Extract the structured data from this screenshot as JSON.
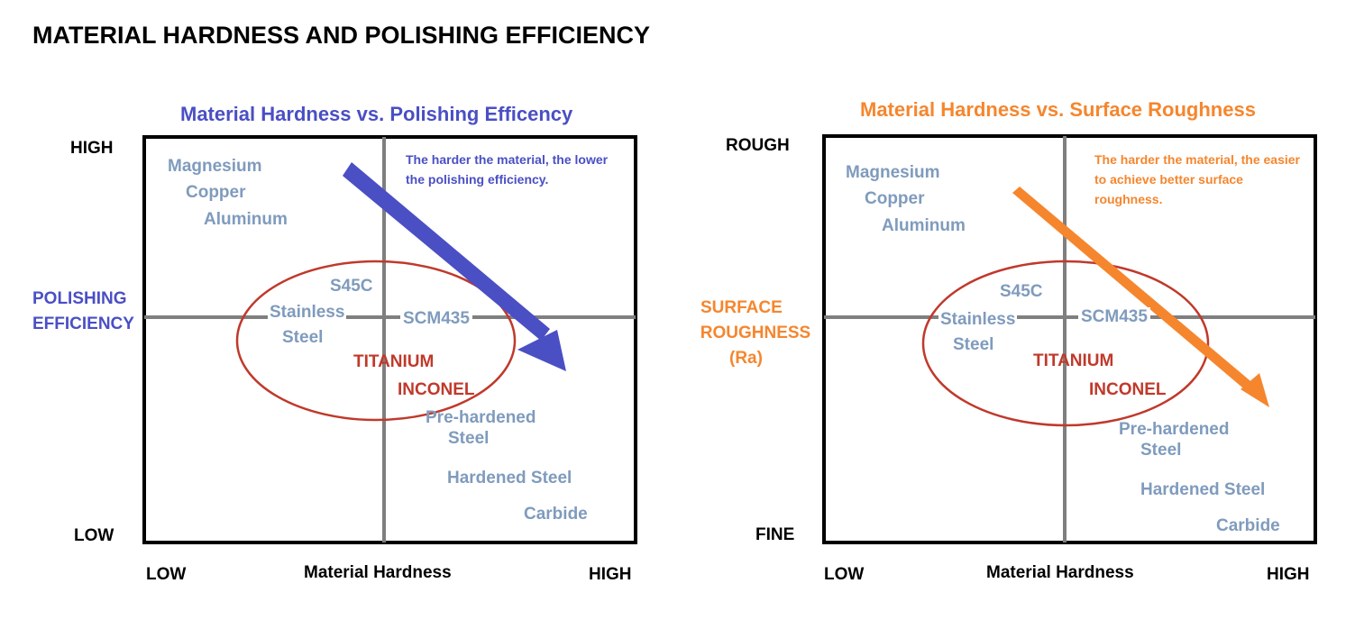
{
  "page_title": "MATERIAL HARDNESS AND POLISHING EFFICIENCY",
  "colors": {
    "blue": "#4a4fc4",
    "orange": "#f5862e",
    "material": "#7f9bbd",
    "highlight": "#c0392b",
    "axis_line": "#7f7f7f",
    "frame": "#000000"
  },
  "charts": [
    {
      "title": "Material Hardness vs. Polishing Efficency",
      "y_label_lines": [
        "POLISHING",
        "EFFICIENCY"
      ],
      "y_high": "HIGH",
      "y_low": "LOW",
      "x_low": "LOW",
      "x_label": "Material Hardness",
      "x_high": "HIGH",
      "note": "The harder the material, the lower the polishing efficiency."
    },
    {
      "title": "Material Hardness vs. Surface Roughness",
      "y_label_lines": [
        "SURFACE",
        "ROUGHNESS",
        "(Ra)"
      ],
      "y_high": "ROUGH",
      "y_low": "FINE",
      "x_low": "LOW",
      "x_label": "Material Hardness",
      "x_high": "HIGH",
      "note": "The harder the material, the easier to achieve better surface roughness."
    }
  ],
  "materials": {
    "magnesium": "Magnesium",
    "copper": "Copper",
    "aluminum": "Aluminum",
    "s45c": "S45C",
    "stainless_1": "Stainless",
    "stainless_2": "Steel",
    "scm435": "SCM435",
    "titanium": "TITANIUM",
    "inconel": "INCONEL",
    "prehardened_1": "Pre-hardened",
    "prehardened_2": "Steel",
    "hardened": "Hardened Steel",
    "carbide": "Carbide"
  }
}
